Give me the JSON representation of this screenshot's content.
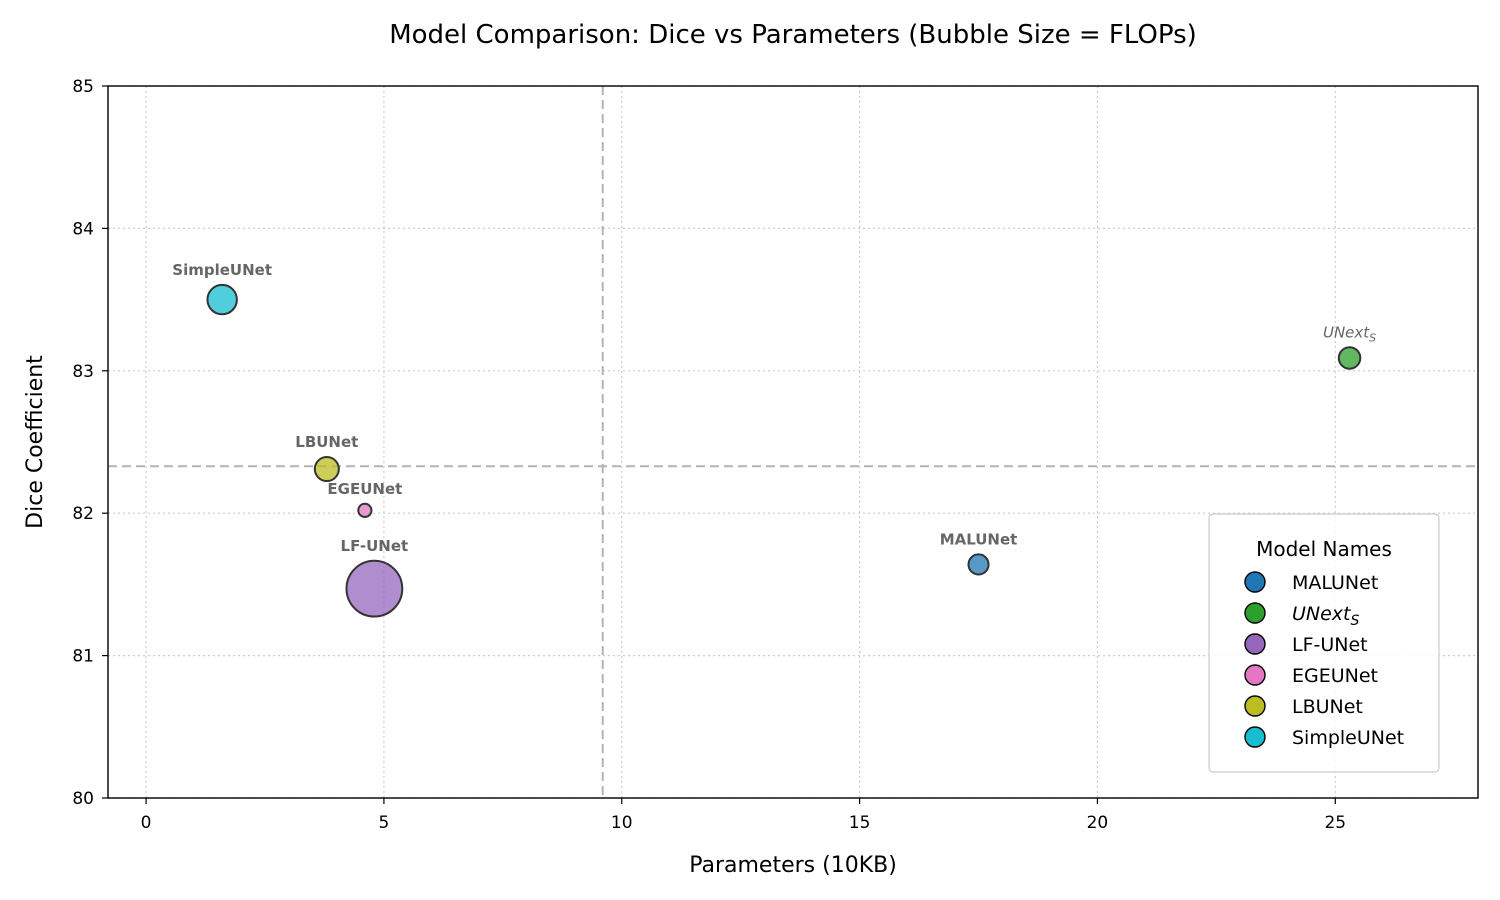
{
  "chart_data": {
    "type": "scatter",
    "title": "Model Comparison: Dice vs Parameters (Bubble Size = FLOPs)",
    "xlabel": "Parameters (10KB)",
    "ylabel": "Dice Coefficient",
    "xlim": [
      -0.8,
      28
    ],
    "ylim": [
      80,
      85
    ],
    "xticks": [
      0,
      5,
      10,
      15,
      20,
      25
    ],
    "yticks": [
      80,
      81,
      82,
      83,
      84,
      85
    ],
    "grid": true,
    "reference_lines": {
      "x": 9.6,
      "y": 82.33
    },
    "legend": {
      "title": "Model Names",
      "placement": "lower-right"
    },
    "series": [
      {
        "name": "MALUNet",
        "label_main": "MALUNet",
        "label_sub": "",
        "italic": false,
        "x": 17.5,
        "y": 81.64,
        "size": 0.35,
        "color": "#1f77b4"
      },
      {
        "name": "UNext_S",
        "label_main": "UNext",
        "label_sub": "S",
        "italic": true,
        "x": 25.3,
        "y": 83.09,
        "size": 0.4,
        "color": "#2ca02c"
      },
      {
        "name": "LF-UNet",
        "label_main": "LF-UNet",
        "label_sub": "",
        "italic": false,
        "x": 4.8,
        "y": 81.47,
        "size": 2.7,
        "color": "#9467bd"
      },
      {
        "name": "EGEUNet",
        "label_main": "EGEUNet",
        "label_sub": "",
        "italic": false,
        "x": 4.6,
        "y": 82.02,
        "size": 0.15,
        "color": "#e377c2"
      },
      {
        "name": "LBUNet",
        "label_main": "LBUNet",
        "label_sub": "",
        "italic": false,
        "x": 3.8,
        "y": 82.31,
        "size": 0.5,
        "color": "#bcbd22"
      },
      {
        "name": "SimpleUNet",
        "label_main": "SimpleUNet",
        "label_sub": "",
        "italic": false,
        "x": 1.6,
        "y": 83.5,
        "size": 0.75,
        "color": "#17becf"
      }
    ]
  }
}
